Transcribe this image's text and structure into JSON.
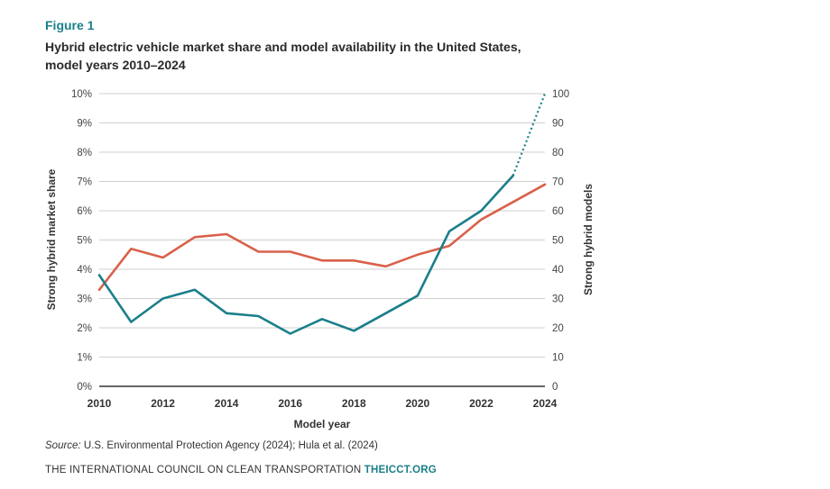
{
  "figure": {
    "label": "Figure 1",
    "title_line1": "Hybrid electric vehicle market share and model availability in the United States,",
    "title_line2": "model years 2010–2024"
  },
  "source": {
    "label": "Source:",
    "text": " U.S. Environmental Protection Agency (2024); Hula et al. (2024)"
  },
  "footer": {
    "org": "THE INTERNATIONAL COUNCIL ON CLEAN TRANSPORTATION ",
    "site": "THEICCT.ORG"
  },
  "colors": {
    "share": "#1a7f8a",
    "models": "#d9614a",
    "grid": "#cfcfcf",
    "axis": "#333333"
  },
  "chart_data": {
    "type": "line",
    "title": "Hybrid electric vehicle market share and model availability in the United States, model years 2010–2024",
    "xlabel": "Model year",
    "ylabel_left": "Strong  hybrid market share",
    "ylabel_right": "Strong hybrid models",
    "xlim": [
      2010,
      2024
    ],
    "x_ticks": [
      "2010",
      "2012",
      "2014",
      "2016",
      "2018",
      "2020",
      "2022",
      "2024"
    ],
    "ylim_left": [
      0,
      10
    ],
    "y_ticks_left": [
      "0%",
      "1%",
      "2%",
      "3%",
      "4%",
      "5%",
      "6%",
      "7%",
      "8%",
      "9%",
      "10%"
    ],
    "ylim_right": [
      0,
      100
    ],
    "y_ticks_right": [
      "0",
      "10",
      "20",
      "30",
      "40",
      "50",
      "60",
      "70",
      "80",
      "90",
      "100"
    ],
    "grid": true,
    "series": [
      {
        "name": "Strong hybrid market share",
        "axis": "left",
        "unit": "%",
        "x": [
          2010,
          2011,
          2012,
          2013,
          2014,
          2015,
          2016,
          2017,
          2018,
          2019,
          2020,
          2021,
          2022,
          2023
        ],
        "values": [
          3.8,
          2.2,
          3.0,
          3.3,
          2.5,
          2.4,
          1.8,
          2.3,
          1.9,
          2.5,
          3.1,
          5.3,
          6.0,
          7.2
        ],
        "projection": {
          "x": [
            2023,
            2024
          ],
          "values": [
            7.2,
            10.0
          ]
        }
      },
      {
        "name": "Strong hybrid models",
        "axis": "right",
        "x": [
          2010,
          2011,
          2012,
          2013,
          2014,
          2015,
          2016,
          2017,
          2018,
          2019,
          2020,
          2021,
          2022,
          2023,
          2024
        ],
        "values": [
          33,
          47,
          44,
          51,
          52,
          46,
          46,
          43,
          43,
          41,
          45,
          48,
          57,
          63,
          69
        ]
      }
    ]
  }
}
